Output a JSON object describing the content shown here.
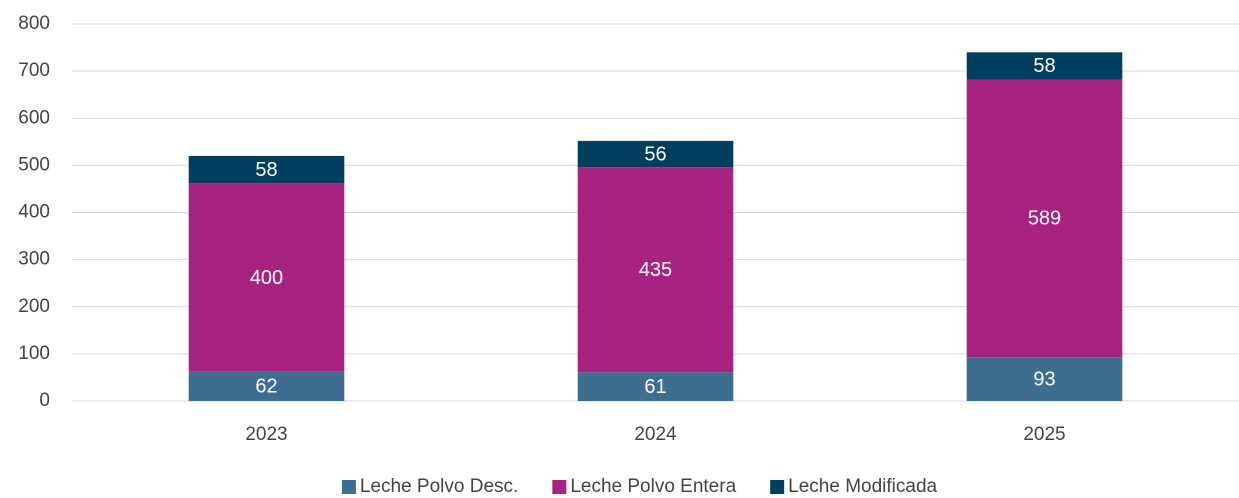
{
  "chart_data": {
    "type": "stacked_bar",
    "categories": [
      "2023",
      "2024",
      "2025"
    ],
    "series": [
      {
        "name": "Leche Polvo Desc.",
        "color": "#3d6e8f",
        "values": [
          62,
          61,
          93
        ]
      },
      {
        "name": "Leche Polvo Entera",
        "color": "#a8237f",
        "values": [
          400,
          435,
          589
        ]
      },
      {
        "name": "Leche Modificada",
        "color": "#023e5e",
        "values": [
          58,
          56,
          58
        ]
      }
    ],
    "ylim": [
      0,
      800
    ],
    "yticks": [
      0,
      100,
      200,
      300,
      400,
      500,
      600,
      700,
      800
    ],
    "grid": true,
    "legend": "bottom"
  }
}
